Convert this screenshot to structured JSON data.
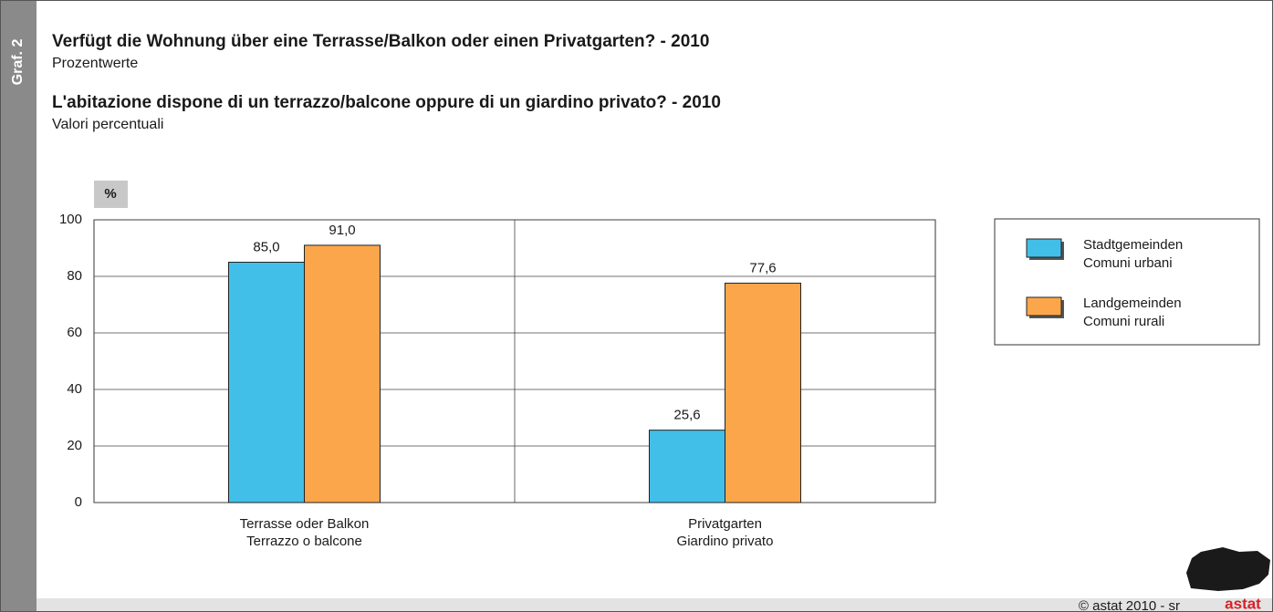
{
  "side_label": "Graf. 2",
  "footer": "© astat 2010 - sr",
  "logo": "astat",
  "chart_data": {
    "type": "bar",
    "title": "Verfügt die Wohnung über eine Terrasse/Balkon oder einen Privatgarten? - 2010",
    "subtitle": "Prozentwerte",
    "title_it": "L'abitazione dispone di un terrazzo/balcone oppure di un giardino privato? - 2010",
    "subtitle_it": "Valori percentuali",
    "y_label": "%",
    "categories": [
      [
        "Terrasse oder Balkon",
        "Terrazzo o balcone"
      ],
      [
        "Privatgarten",
        "Giardino privato"
      ]
    ],
    "series": [
      {
        "name": [
          "Stadtgemeinden",
          "Comuni urbani"
        ],
        "color": "#41bfe8",
        "values": [
          85.0,
          25.6
        ],
        "value_labels": [
          "85,0",
          "25,6"
        ]
      },
      {
        "name": [
          "Landgemeinden",
          "Comuni rurali"
        ],
        "color": "#fba64a",
        "values": [
          91.0,
          77.6
        ],
        "value_labels": [
          "91,0",
          "77,6"
        ]
      }
    ],
    "ylim": [
      0,
      100
    ],
    "yticks": [
      0,
      20,
      40,
      60,
      80,
      100
    ],
    "grid": true,
    "legend": "right"
  }
}
